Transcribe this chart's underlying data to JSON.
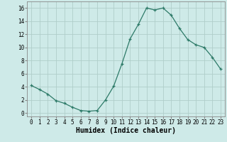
{
  "x": [
    0,
    1,
    2,
    3,
    4,
    5,
    6,
    7,
    8,
    9,
    10,
    11,
    12,
    13,
    14,
    15,
    16,
    17,
    18,
    19,
    20,
    21,
    22,
    23
  ],
  "y": [
    4.2,
    3.6,
    2.9,
    1.9,
    1.5,
    0.9,
    0.4,
    0.3,
    0.4,
    2.0,
    4.1,
    7.5,
    11.3,
    13.5,
    16.0,
    15.7,
    16.0,
    14.9,
    12.9,
    11.2,
    10.4,
    10.0,
    8.5,
    6.7
  ],
  "line_color": "#2d7a68",
  "marker": "+",
  "marker_size": 3,
  "line_width": 0.9,
  "bg_color": "#ceeae8",
  "grid_color": "#b0ceca",
  "xlabel": "Humidex (Indice chaleur)",
  "xlabel_fontsize": 7,
  "xlabel_fontweight": "bold",
  "ylim": [
    -0.5,
    17
  ],
  "xlim": [
    -0.5,
    23.5
  ],
  "yticks": [
    0,
    2,
    4,
    6,
    8,
    10,
    12,
    14,
    16
  ],
  "xticks": [
    0,
    1,
    2,
    3,
    4,
    5,
    6,
    7,
    8,
    9,
    10,
    11,
    12,
    13,
    14,
    15,
    16,
    17,
    18,
    19,
    20,
    21,
    22,
    23
  ],
  "tick_fontsize": 5.5,
  "marker_edge_width": 0.9
}
